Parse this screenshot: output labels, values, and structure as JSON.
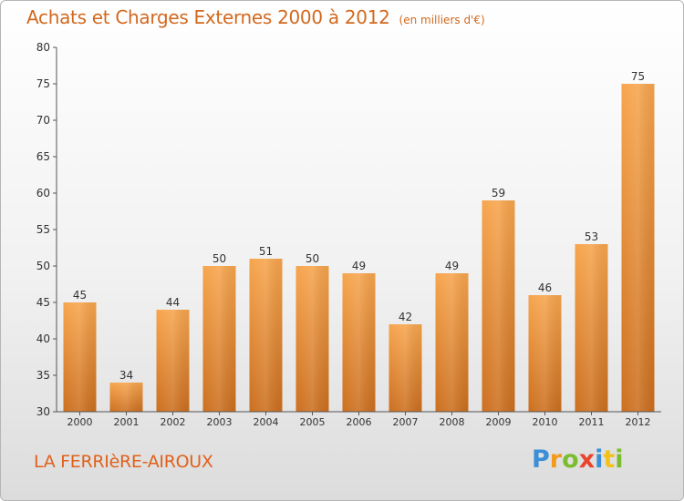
{
  "header": {
    "title": "Achats et Charges Externes 2000 à 2012",
    "unit_note": "(en milliers d'€)"
  },
  "footer": {
    "commune": "LA FERRIèRE-AIROUX",
    "brand": {
      "letters": [
        {
          "ch": "P",
          "color": "#3a8fd6"
        },
        {
          "ch": "r",
          "color": "#f29a1c"
        },
        {
          "ch": "o",
          "color": "#7bbd2e"
        },
        {
          "ch": "x",
          "color": "#e8452c"
        },
        {
          "ch": "i",
          "color": "#3a8fd6"
        },
        {
          "ch": "t",
          "color": "#f2c21c"
        },
        {
          "ch": "i",
          "color": "#7bbd2e"
        }
      ]
    }
  },
  "chart_data": {
    "type": "bar",
    "title": "Achats et Charges Externes 2000 à 2012",
    "subtitle": "(en milliers d'€)",
    "categories": [
      "2000",
      "2001",
      "2002",
      "2003",
      "2004",
      "2005",
      "2006",
      "2007",
      "2008",
      "2009",
      "2010",
      "2011",
      "2012"
    ],
    "values": [
      45,
      34,
      44,
      50,
      51,
      50,
      49,
      42,
      49,
      59,
      46,
      53,
      75
    ],
    "ylim": [
      30,
      80
    ],
    "yticks": [
      30,
      35,
      40,
      45,
      50,
      55,
      60,
      65,
      70,
      75,
      80
    ],
    "grid": false,
    "colors": {
      "bar_top": "#f7a54d",
      "bar_bottom": "#cc6f1f",
      "axis": "#555555"
    }
  }
}
